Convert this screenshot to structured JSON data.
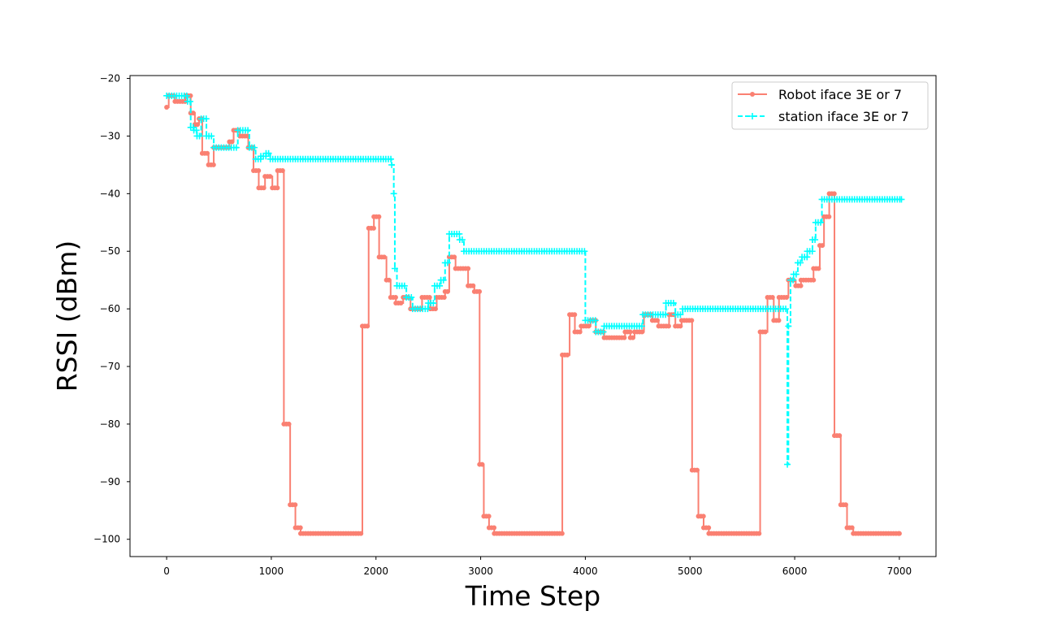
{
  "chart_data": {
    "type": "line",
    "title": "",
    "xlabel": "Time Step",
    "ylabel": "RSSI (dBm)",
    "xlim": [
      -350,
      7350
    ],
    "ylim": [
      -103,
      -19.5
    ],
    "xticks": [
      0,
      1000,
      2000,
      3000,
      4000,
      5000,
      6000,
      7000
    ],
    "yticks": [
      -20,
      -30,
      -40,
      -50,
      -60,
      -70,
      -80,
      -90,
      -100
    ],
    "grid": false,
    "legend_position": "top-right",
    "series": [
      {
        "name": "Robot iface 3E or 7",
        "color": "#fa8072",
        "line_style": "solid",
        "marker": "dot",
        "step": true,
        "points": [
          [
            0,
            -25
          ],
          [
            20,
            -23
          ],
          [
            80,
            -24
          ],
          [
            180,
            -23
          ],
          [
            230,
            -26
          ],
          [
            270,
            -28
          ],
          [
            310,
            -27
          ],
          [
            340,
            -33
          ],
          [
            400,
            -35
          ],
          [
            450,
            -32
          ],
          [
            600,
            -31
          ],
          [
            640,
            -29
          ],
          [
            700,
            -30
          ],
          [
            780,
            -32
          ],
          [
            830,
            -36
          ],
          [
            880,
            -39
          ],
          [
            940,
            -37
          ],
          [
            1010,
            -39
          ],
          [
            1060,
            -36
          ],
          [
            1120,
            -80
          ],
          [
            1180,
            -94
          ],
          [
            1230,
            -98
          ],
          [
            1280,
            -99
          ],
          [
            1870,
            -63
          ],
          [
            1930,
            -46
          ],
          [
            1980,
            -44
          ],
          [
            2030,
            -51
          ],
          [
            2100,
            -55
          ],
          [
            2140,
            -58
          ],
          [
            2190,
            -59
          ],
          [
            2260,
            -58
          ],
          [
            2330,
            -60
          ],
          [
            2440,
            -58
          ],
          [
            2520,
            -60
          ],
          [
            2580,
            -58
          ],
          [
            2660,
            -57
          ],
          [
            2700,
            -51
          ],
          [
            2760,
            -53
          ],
          [
            2880,
            -56
          ],
          [
            2940,
            -57
          ],
          [
            2990,
            -87
          ],
          [
            3030,
            -96
          ],
          [
            3080,
            -98
          ],
          [
            3130,
            -99
          ],
          [
            3780,
            -68
          ],
          [
            3850,
            -61
          ],
          [
            3900,
            -64
          ],
          [
            3960,
            -63
          ],
          [
            4050,
            -62
          ],
          [
            4100,
            -64
          ],
          [
            4180,
            -65
          ],
          [
            4380,
            -64
          ],
          [
            4430,
            -65
          ],
          [
            4470,
            -64
          ],
          [
            4560,
            -61
          ],
          [
            4640,
            -62
          ],
          [
            4700,
            -63
          ],
          [
            4800,
            -61
          ],
          [
            4860,
            -63
          ],
          [
            4920,
            -62
          ],
          [
            5020,
            -88
          ],
          [
            5080,
            -96
          ],
          [
            5130,
            -98
          ],
          [
            5180,
            -99
          ],
          [
            5670,
            -64
          ],
          [
            5740,
            -58
          ],
          [
            5800,
            -62
          ],
          [
            5850,
            -58
          ],
          [
            5940,
            -55
          ],
          [
            6010,
            -56
          ],
          [
            6060,
            -55
          ],
          [
            6180,
            -53
          ],
          [
            6240,
            -49
          ],
          [
            6280,
            -44
          ],
          [
            6330,
            -40
          ],
          [
            6380,
            -82
          ],
          [
            6440,
            -94
          ],
          [
            6500,
            -98
          ],
          [
            6560,
            -99
          ],
          [
            7000,
            -99
          ]
        ]
      },
      {
        "name": "station iface 3E or 7",
        "color": "#00ffff",
        "line_style": "dashed",
        "marker": "plus",
        "step": true,
        "points": [
          [
            0,
            -23
          ],
          [
            200,
            -24
          ],
          [
            230,
            -28.5
          ],
          [
            260,
            -29
          ],
          [
            290,
            -30
          ],
          [
            330,
            -27
          ],
          [
            380,
            -30
          ],
          [
            450,
            -32
          ],
          [
            680,
            -29
          ],
          [
            790,
            -32
          ],
          [
            850,
            -34
          ],
          [
            900,
            -33.5
          ],
          [
            950,
            -33
          ],
          [
            990,
            -34
          ],
          [
            2150,
            -35
          ],
          [
            2170,
            -40
          ],
          [
            2180,
            -53
          ],
          [
            2200,
            -56
          ],
          [
            2290,
            -58
          ],
          [
            2350,
            -60
          ],
          [
            2500,
            -59
          ],
          [
            2560,
            -56
          ],
          [
            2620,
            -55
          ],
          [
            2660,
            -52
          ],
          [
            2700,
            -47
          ],
          [
            2800,
            -48
          ],
          [
            2840,
            -50
          ],
          [
            4000,
            -62
          ],
          [
            4100,
            -64
          ],
          [
            4180,
            -63
          ],
          [
            4550,
            -61
          ],
          [
            4770,
            -59
          ],
          [
            4860,
            -61
          ],
          [
            4930,
            -60
          ],
          [
            5930,
            -87
          ],
          [
            5940,
            -63
          ],
          [
            5960,
            -55
          ],
          [
            5990,
            -54
          ],
          [
            6030,
            -52
          ],
          [
            6070,
            -51
          ],
          [
            6120,
            -50
          ],
          [
            6170,
            -48
          ],
          [
            6200,
            -45
          ],
          [
            6260,
            -41
          ],
          [
            7020,
            -41
          ]
        ]
      }
    ]
  }
}
